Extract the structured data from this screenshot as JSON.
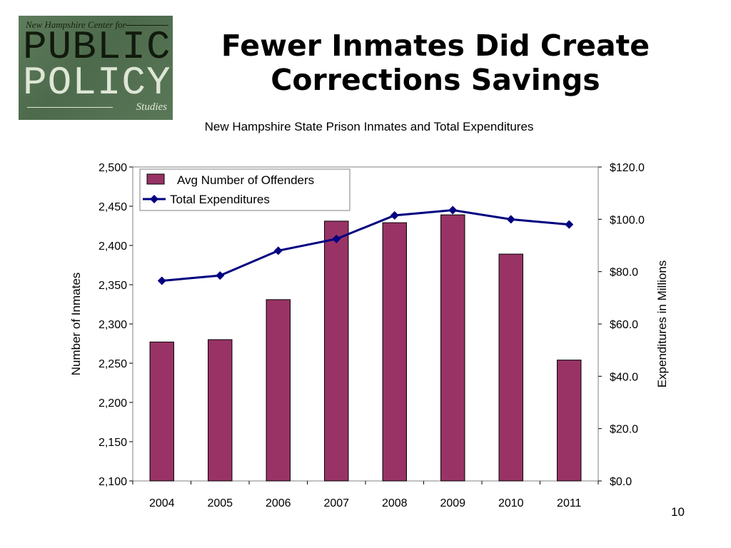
{
  "logo": {
    "top_text": "New Hampshire Center for",
    "line1": "PUBLIC",
    "line2": "POLICY",
    "bottom_text": "Studies"
  },
  "slide": {
    "title_line1": "Fewer Inmates Did Create",
    "title_line2": "Corrections Savings",
    "page_number": "10"
  },
  "chart_data": {
    "type": "bar",
    "title": "New Hampshire State Prison Inmates and Total Expenditures",
    "categories": [
      "2004",
      "2005",
      "2006",
      "2007",
      "2008",
      "2009",
      "2010",
      "2011"
    ],
    "series": [
      {
        "name": "Avg Number of Offenders",
        "type": "bar",
        "axis": "left",
        "color": "#993366",
        "values": [
          2277,
          2280,
          2331,
          2431,
          2429,
          2439,
          2389,
          2254
        ]
      },
      {
        "name": "Total Expenditures",
        "type": "line",
        "axis": "right",
        "color": "#000080",
        "values": [
          76.5,
          78.5,
          88.0,
          92.5,
          101.5,
          103.5,
          100.0,
          98.0
        ]
      }
    ],
    "ylabel": "Number of Inmates",
    "ylim": [
      2100,
      2500
    ],
    "yticks": [
      "2,100",
      "2,150",
      "2,200",
      "2,250",
      "2,300",
      "2,350",
      "2,400",
      "2,450",
      "2,500"
    ],
    "y2label": "Expenditures in Millions",
    "y2lim": [
      0,
      120
    ],
    "y2ticks": [
      "$0.0",
      "$20.0",
      "$40.0",
      "$60.0",
      "$80.0",
      "$100.0",
      "$120.0"
    ],
    "legend_position": "top-left",
    "grid": false
  }
}
